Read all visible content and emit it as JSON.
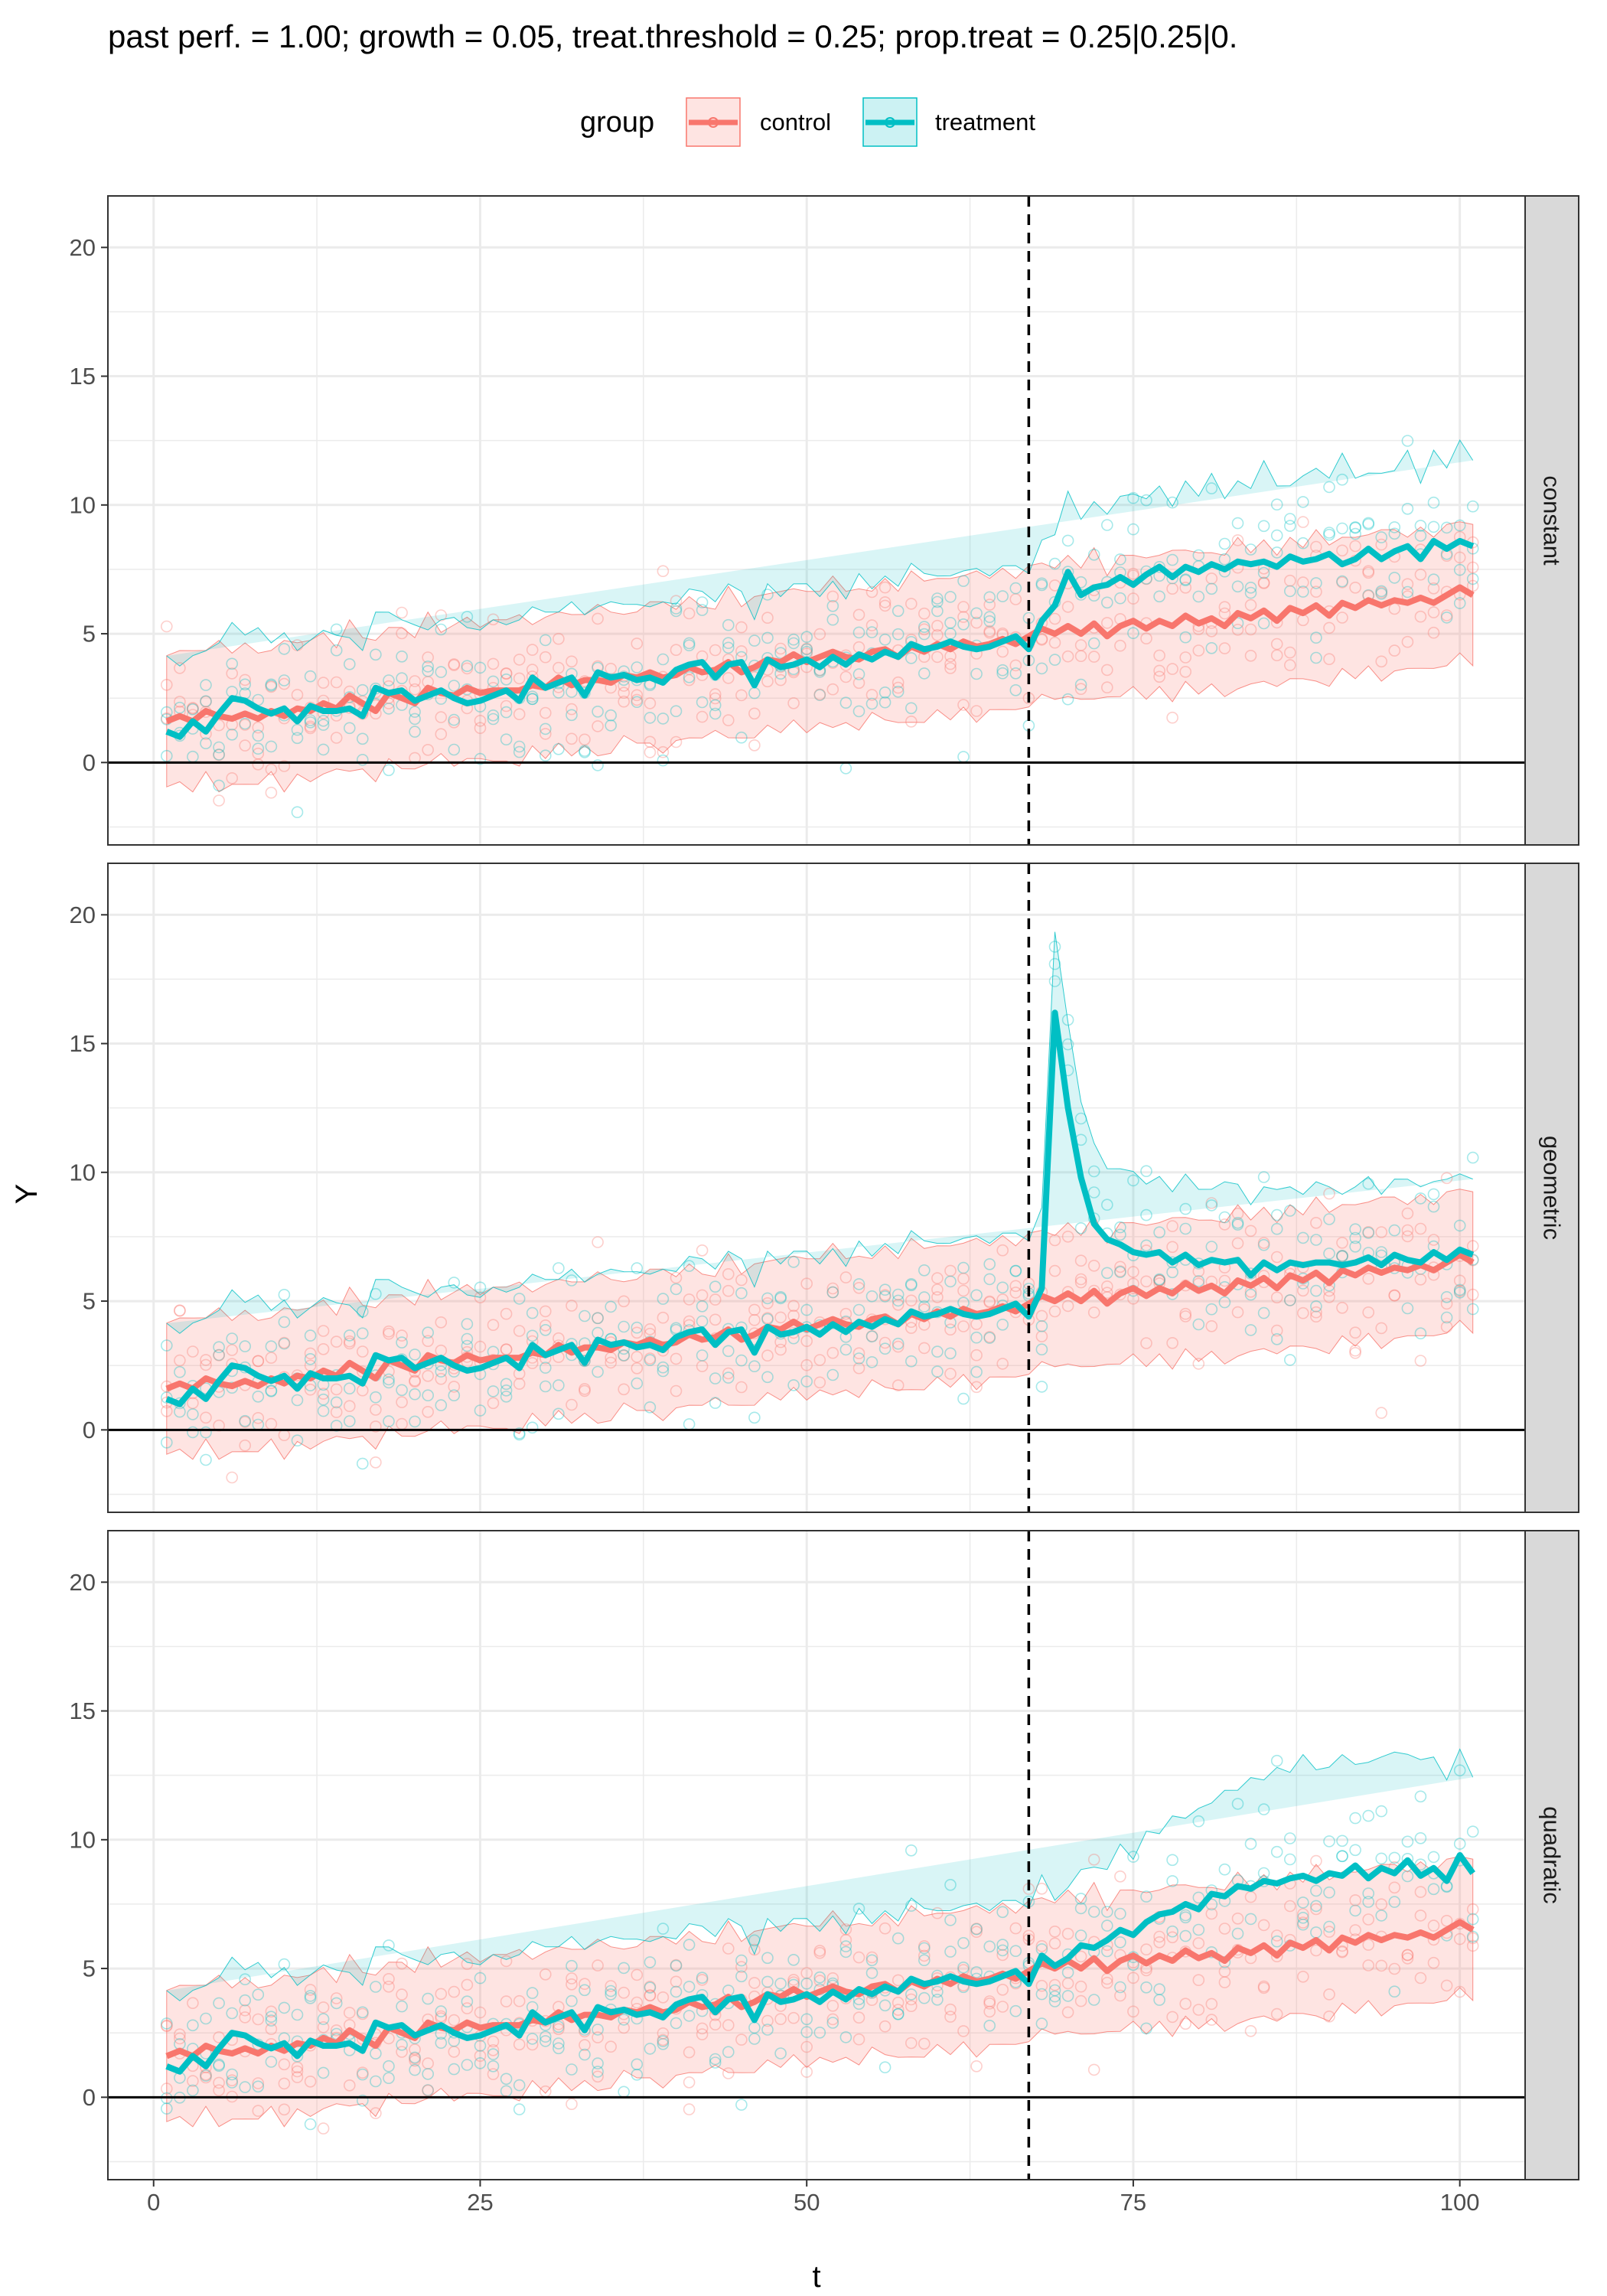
{
  "figure": {
    "title": "past perf. = 1.00; growth = 0.05,  treat.threshold = 0.25;  prop.treat = 0.25|0.25|0.",
    "xlabel": "t",
    "ylabel": "Y"
  },
  "legend": {
    "title": "group",
    "position": "top",
    "items": [
      {
        "label": "control",
        "color": "#F8766D"
      },
      {
        "label": "treatment",
        "color": "#00BFC4"
      }
    ]
  },
  "colors": {
    "control": "#F8766D",
    "treatment": "#00BFC4",
    "overlap": "#c4d6d4",
    "strip_bg": "#d9d9d9",
    "grid": "#ebebeb"
  },
  "chart_data": {
    "type": "line",
    "facet_by": "treatment effect shape",
    "x_ticks": [
      0,
      25,
      50,
      75,
      100
    ],
    "y_ticks": [
      0,
      5,
      10,
      15,
      20
    ],
    "xlim": [
      -3.5,
      105
    ],
    "ylim": [
      -3.2,
      22
    ],
    "grid": true,
    "treatment_start": 67,
    "reference_line_y": 0,
    "band_bounds": "mean ± 1.96 sd",
    "control": {
      "name": "control",
      "mean": [
        1.6,
        1.8,
        1.6,
        2.0,
        1.8,
        1.7,
        1.9,
        1.7,
        2.0,
        1.8,
        2.1,
        2.0,
        2.3,
        2.1,
        2.6,
        2.3,
        2.0,
        2.7,
        2.5,
        2.3,
        2.9,
        2.7,
        2.6,
        2.9,
        2.7,
        2.8,
        2.8,
        2.8,
        3.0,
        2.9,
        3.3,
        3.0,
        3.2,
        3.2,
        3.1,
        3.4,
        3.3,
        3.5,
        3.3,
        3.4,
        3.7,
        3.5,
        3.6,
        3.9,
        3.5,
        3.7,
        4.0,
        3.9,
        4.2,
        3.9,
        4.1,
        4.3,
        4.1,
        4.0,
        4.3,
        4.4,
        4.1,
        4.5,
        4.3,
        4.6,
        4.4,
        4.7,
        4.5,
        4.6,
        4.8,
        4.6,
        4.9,
        5.2,
        5.0,
        5.3,
        5.0,
        5.4,
        4.9,
        5.3,
        5.5,
        5.2,
        5.5,
        5.3,
        5.7,
        5.4,
        5.6,
        5.3,
        5.8,
        5.6,
        5.9,
        5.5,
        6.0,
        5.8,
        6.1,
        5.7,
        6.2,
        6.0,
        6.3,
        6.1,
        6.3,
        6.2,
        6.4,
        6.2,
        6.5,
        6.8,
        6.5
      ],
      "sd": [
        1.3,
        1.3,
        1.4,
        1.2,
        1.5,
        1.3,
        1.4,
        1.3,
        1.2,
        1.5,
        1.3,
        1.4,
        1.4,
        1.2,
        1.5,
        1.3,
        1.4,
        1.3,
        1.4,
        1.3,
        1.5,
        1.2,
        1.4,
        1.4,
        1.3,
        1.4,
        1.4,
        1.5,
        1.2,
        1.4,
        1.3,
        1.4,
        1.3,
        1.5,
        1.4,
        1.2,
        1.3,
        1.4,
        1.5,
        1.3,
        1.4,
        1.3,
        1.2,
        1.5,
        1.3,
        1.4,
        1.3,
        1.4,
        1.3,
        1.4,
        1.3,
        1.5,
        1.3,
        1.4,
        1.2,
        1.4,
        1.3,
        1.5,
        1.4,
        1.3,
        1.4,
        1.3,
        1.5,
        1.3,
        1.4,
        1.3,
        1.4,
        1.3,
        1.3,
        1.4,
        1.3,
        1.5,
        1.2,
        1.4,
        1.3,
        1.4,
        1.3,
        1.5,
        1.3,
        1.4,
        1.3,
        1.4,
        1.5,
        1.3,
        1.4,
        1.3,
        1.4,
        1.3,
        1.5,
        1.4,
        1.3,
        1.4,
        1.3,
        1.5,
        1.4,
        1.3,
        1.4,
        1.3,
        1.4,
        1.3,
        1.4
      ]
    },
    "treatment_pre": {
      "mean": [
        1.2,
        1.0,
        1.6,
        1.2,
        1.9,
        2.5,
        2.4,
        2.1,
        1.9,
        2.1,
        1.6,
        2.2,
        2.0,
        2.0,
        2.1,
        1.8,
        2.9,
        2.7,
        2.8,
        2.4,
        2.6,
        2.8,
        2.5,
        2.3,
        2.4,
        2.6,
        2.8,
        2.4,
        3.3,
        2.9,
        3.1,
        3.3,
        2.6,
        3.5,
        3.3,
        3.4,
        3.2,
        3.3,
        3.1,
        3.6,
        3.8,
        3.9,
        3.3,
        3.8,
        3.9,
        3.0,
        4.0,
        3.7,
        3.8,
        4.0,
        3.7,
        4.1,
        3.8,
        4.2,
        4.0,
        4.3,
        4.1,
        4.6,
        4.4,
        4.5,
        4.7,
        4.5,
        4.4,
        4.5,
        4.7,
        4.9,
        4.4,
        5.5
      ],
      "sd": [
        1.5,
        1.4,
        1.3,
        1.6,
        1.4,
        1.5,
        1.3,
        1.6,
        1.4,
        1.5,
        1.4,
        1.3,
        1.6,
        1.5,
        1.4,
        1.3,
        1.5,
        1.6,
        1.4,
        1.5,
        1.3,
        1.4,
        1.6,
        1.5,
        1.4,
        1.5,
        1.3,
        1.6,
        1.4,
        1.5,
        1.4,
        1.5,
        1.6,
        1.3,
        1.5,
        1.4,
        1.5,
        1.4,
        1.6,
        1.3,
        1.5,
        1.4,
        1.5,
        1.6,
        1.4,
        1.3,
        1.5,
        1.4,
        1.6,
        1.5,
        1.4,
        1.5,
        1.3,
        1.6,
        1.4,
        1.5,
        1.4,
        1.6,
        1.5,
        1.4,
        1.3,
        1.5,
        1.6,
        1.4,
        1.5,
        1.4,
        1.5,
        1.6
      ]
    },
    "facets": [
      {
        "label": "constant",
        "treatment_post": {
          "mean": [
            6.1,
            7.4,
            6.5,
            6.8,
            6.9,
            7.2,
            6.9,
            7.3,
            7.6,
            7.2,
            7.6,
            7.4,
            7.7,
            7.5,
            7.8,
            7.7,
            7.8,
            7.6,
            8.0,
            7.8,
            7.9,
            8.1,
            7.7,
            7.9,
            8.3,
            7.9,
            8.2,
            8.4,
            7.9,
            8.6,
            8.3,
            8.6,
            8.4,
            9.2,
            8.2,
            8.6,
            7.9,
            8.4,
            8.0,
            8.4,
            8.6,
            8.7,
            8.9
          ],
          "sd": [
            1.4,
            1.6,
            1.5,
            1.7,
            1.4,
            1.6,
            1.8,
            1.5,
            1.6,
            1.4,
            1.7,
            1.5,
            1.8,
            1.4,
            1.6,
            1.5,
            2.0,
            1.6,
            1.4,
            1.7,
            1.8,
            1.5,
            2.2,
            1.6,
            1.5,
            1.7,
            1.6,
            1.9,
            1.5,
            1.8,
            1.6,
            2.0,
            1.7,
            1.6,
            1.8,
            1.5,
            2.3,
            1.6,
            1.7,
            1.8,
            1.5,
            1.6,
            1.4
          ]
        }
      },
      {
        "label": "geometric",
        "treatment_post": {
          "mean": [
            16.2,
            12.5,
            9.8,
            8.0,
            7.4,
            7.2,
            6.9,
            6.8,
            6.9,
            6.5,
            6.8,
            6.4,
            6.6,
            6.5,
            6.6,
            6.0,
            6.5,
            6.2,
            6.5,
            6.4,
            6.5,
            6.5,
            6.4,
            6.5,
            6.7,
            6.4,
            6.8,
            6.6,
            6.5,
            6.9,
            6.6,
            7.0,
            6.8,
            6.6,
            7.0,
            6.8,
            7.2,
            6.6,
            6.9,
            6.6,
            7.0,
            7.1,
            7.3
          ],
          "sd": [
            1.6,
            1.7,
            1.5,
            1.6,
            1.4,
            1.5,
            1.6,
            1.4,
            1.5,
            1.4,
            1.6,
            1.5,
            1.4,
            1.6,
            1.5,
            1.4,
            1.5,
            1.6,
            1.5,
            1.4,
            1.6,
            1.5,
            1.4,
            1.5,
            1.6,
            1.4,
            1.5,
            1.6,
            1.5,
            1.4,
            1.6,
            1.5,
            1.5,
            1.4,
            1.6,
            1.5,
            1.7,
            1.4,
            1.6,
            1.5,
            1.6,
            1.5,
            1.6
          ]
        }
      },
      {
        "label": "quadratic",
        "treatment_post": {
          "mean": [
            5.1,
            5.4,
            5.9,
            5.8,
            6.1,
            6.5,
            6.3,
            6.8,
            7.1,
            7.2,
            7.5,
            7.3,
            7.9,
            7.8,
            8.2,
            8.1,
            8.4,
            8.3,
            8.5,
            8.6,
            8.4,
            8.7,
            8.6,
            9.0,
            8.5,
            8.9,
            8.7,
            9.2,
            8.6,
            8.9,
            8.4,
            9.4,
            8.7,
            9.0,
            8.5,
            8.1,
            8.6,
            7.7,
            7.9,
            7.3,
            7.4,
            7.2,
            7.3
          ],
          "sd": [
            1.3,
            1.4,
            1.5,
            1.6,
            1.4,
            1.7,
            1.5,
            1.8,
            1.6,
            1.9,
            1.7,
            2.0,
            1.8,
            2.1,
            1.9,
            2.2,
            2.0,
            2.3,
            2.1,
            2.4,
            2.2,
            2.1,
            2.4,
            2.0,
            2.3,
            2.2,
            2.4,
            2.1,
            2.3,
            2.2,
            2.0,
            2.1,
            1.9,
            2.0,
            1.8,
            1.9,
            1.6,
            1.5,
            1.4,
            1.4,
            1.3,
            1.3,
            1.4
          ]
        }
      }
    ]
  }
}
